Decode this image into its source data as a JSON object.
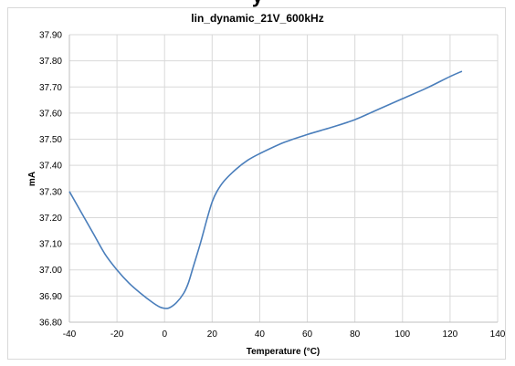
{
  "chart_data": {
    "type": "line",
    "title": "lin_dynamic_21V_600kHz",
    "clipped_top_text": "y",
    "xlabel": "Temperature (°C)",
    "ylabel": "mA",
    "xlim": [
      -40,
      140
    ],
    "ylim": [
      36.8,
      37.9
    ],
    "x_ticks": [
      "-40",
      "-20",
      "0",
      "20",
      "40",
      "60",
      "80",
      "100",
      "120",
      "140"
    ],
    "y_ticks": [
      "36.80",
      "36.90",
      "37.00",
      "37.10",
      "37.20",
      "37.30",
      "37.40",
      "37.50",
      "37.60",
      "37.70",
      "37.80",
      "37.90"
    ],
    "grid": true,
    "line_color": "#4a7ebb",
    "series": [
      {
        "x": [
          -40,
          -35,
          -30,
          -25,
          -20,
          -15,
          -10,
          -5,
          -2,
          0,
          2,
          5,
          8,
          10,
          12,
          15,
          18,
          20,
          22,
          25,
          30,
          35,
          40,
          50,
          60,
          70,
          80,
          90,
          100,
          110,
          120,
          125
        ],
        "y": [
          37.3,
          37.22,
          37.14,
          37.06,
          37.0,
          36.95,
          36.91,
          36.875,
          36.858,
          36.853,
          36.855,
          36.875,
          36.91,
          36.95,
          37.01,
          37.1,
          37.2,
          37.26,
          37.3,
          37.34,
          37.385,
          37.42,
          37.445,
          37.487,
          37.518,
          37.545,
          37.575,
          37.615,
          37.655,
          37.695,
          37.74,
          37.76
        ]
      }
    ]
  }
}
